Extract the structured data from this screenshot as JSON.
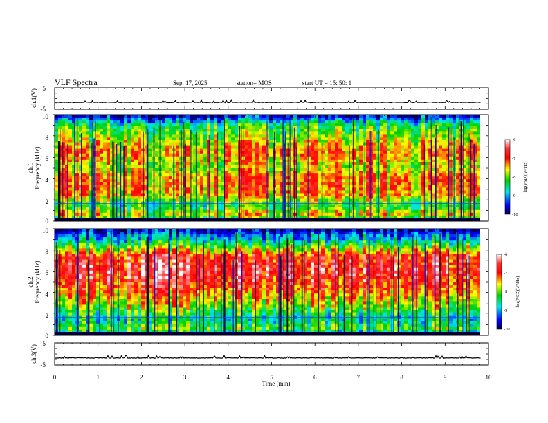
{
  "header": {
    "title": "VLF Spectra",
    "date": "Sep. 17, 2025",
    "station": "station= MOS",
    "start": "start  UT =  15: 50: 1"
  },
  "chart_data": [
    {
      "type": "line",
      "name": "ch1-waveform",
      "ylabel": "ch.1(V)",
      "ylim": [
        -5,
        5
      ],
      "yticks": [
        "5",
        "-5"
      ],
      "baseline": -1.8,
      "x_range_min": [
        0,
        9.83
      ]
    },
    {
      "type": "heatmap",
      "name": "ch1-spectrogram",
      "ylabel_line1": "ch.1",
      "ylabel_line2": "Frequency (kHz)",
      "ylim": [
        0,
        10
      ],
      "yticks": [
        "0",
        "2",
        "4",
        "6",
        "8",
        "10"
      ],
      "colorbar": {
        "label": "log(PSD)(V²/Hz)",
        "range": [
          -10,
          -6
        ],
        "ticks": [
          "-6",
          "-7",
          "-8",
          "-9",
          "-10"
        ]
      },
      "band_level_by_khz": [
        {
          "f": 0.0,
          "v": -10.0
        },
        {
          "f": 0.5,
          "v": -7.5
        },
        {
          "f": 1.5,
          "v": -8.4
        },
        {
          "f": 2.5,
          "v": -7.4
        },
        {
          "f": 4.0,
          "v": -7.2
        },
        {
          "f": 5.0,
          "v": -7.8
        },
        {
          "f": 6.5,
          "v": -7.3
        },
        {
          "f": 8.0,
          "v": -7.9
        },
        {
          "f": 9.0,
          "v": -8.3
        },
        {
          "f": 9.6,
          "v": -9.2
        },
        {
          "f": 10.0,
          "v": -9.8
        }
      ]
    },
    {
      "type": "heatmap",
      "name": "ch2-spectrogram",
      "ylabel_line1": "ch.2",
      "ylabel_line2": "Frequency (kHz)",
      "ylim": [
        0,
        10
      ],
      "yticks": [
        "0",
        "2",
        "4",
        "6",
        "8",
        "10"
      ],
      "colorbar": {
        "label": "log(PSD)(V²/Hz)",
        "range": [
          -10,
          -6
        ],
        "ticks": [
          "-6",
          "-7",
          "-8",
          "-9",
          "-10"
        ]
      },
      "band_level_by_khz": [
        {
          "f": 0.0,
          "v": -10.0
        },
        {
          "f": 0.5,
          "v": -8.0
        },
        {
          "f": 1.5,
          "v": -8.6
        },
        {
          "f": 3.0,
          "v": -7.7
        },
        {
          "f": 4.5,
          "v": -7.0
        },
        {
          "f": 6.0,
          "v": -6.6
        },
        {
          "f": 7.5,
          "v": -6.9
        },
        {
          "f": 8.5,
          "v": -8.2
        },
        {
          "f": 9.3,
          "v": -9.0
        },
        {
          "f": 10.0,
          "v": -9.8
        }
      ]
    },
    {
      "type": "line",
      "name": "ch3-waveform",
      "ylabel": "ch.3(V)",
      "ylim": [
        -5,
        5
      ],
      "yticks": [
        "5",
        "-5"
      ],
      "baseline": -1.8,
      "x_range_min": [
        0,
        9.83
      ]
    }
  ],
  "xaxis": {
    "label": "Time  (min)",
    "range": [
      0,
      10
    ],
    "ticks": [
      "0",
      "1",
      "2",
      "3",
      "4",
      "5",
      "6",
      "7",
      "8",
      "9",
      "10"
    ]
  },
  "colors": {
    "low": "#00008b",
    "blue": "#0000ff",
    "cyan": "#00e0e0",
    "green": "#00d000",
    "yellow": "#ffff00",
    "orange": "#ff9900",
    "red": "#ff0000",
    "high": "#ffffff"
  }
}
